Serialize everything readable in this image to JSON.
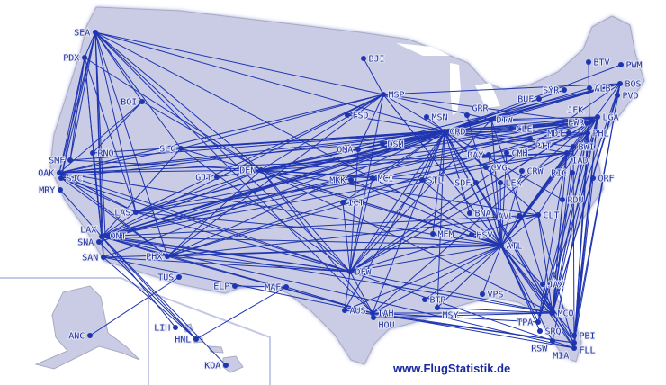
{
  "map": {
    "land_color": "#c9cce4",
    "border_color": "#a9acc0",
    "route_color": "#1f35b0",
    "airports": [
      "SEA",
      "PDX",
      "BOI",
      "RNO",
      "SMF",
      "OAK",
      "SJC",
      "MRY",
      "SLC",
      "GJT",
      "DEN",
      "LAS",
      "LAX",
      "ONT",
      "SNA",
      "SAN",
      "PHX",
      "TUS",
      "ELP",
      "MAF",
      "ANC",
      "LIH",
      "HNL",
      "KOA",
      "BJI",
      "MSP",
      "FSD",
      "MSN",
      "GRR",
      "DTW",
      "ORD",
      "CLE",
      "OMA",
      "DSM",
      "DAY",
      "CMH",
      "PIT",
      "CVG",
      "CRW",
      "MCI",
      "MKK",
      "STL",
      "SDF",
      "LEX",
      "ICT",
      "BNA",
      "MEM",
      "HSV",
      "ATL",
      "AVL",
      "CLT",
      "RDU",
      "DFW",
      "BTR",
      "MSY",
      "VPS",
      "AUS",
      "IAH",
      "HOU",
      "JAX",
      "MCO",
      "TPA",
      "SRQ",
      "RSW",
      "PBI",
      "FLL",
      "MIA",
      "BTV",
      "PWM",
      "BOS",
      "PVD",
      "SYR",
      "ALB",
      "BUF",
      "LGA",
      "EWR",
      "PHL",
      "MDT",
      "BWI",
      "IAD",
      "RIC",
      "ORF"
    ],
    "routes": [
      [
        "SEA",
        "PDX"
      ],
      [
        "SEA",
        "OAK"
      ],
      [
        "SEA",
        "SJC"
      ],
      [
        "SEA",
        "LAX"
      ],
      [
        "SEA",
        "SAN"
      ],
      [
        "SEA",
        "LAS"
      ],
      [
        "SEA",
        "PHX"
      ],
      [
        "SEA",
        "SLC"
      ],
      [
        "SEA",
        "DEN"
      ],
      [
        "SEA",
        "MSP"
      ],
      [
        "SEA",
        "ORD"
      ],
      [
        "SEA",
        "DFW"
      ],
      [
        "SEA",
        "ATL"
      ],
      [
        "SEA",
        "BOI"
      ],
      [
        "SEA",
        "SMF"
      ],
      [
        "SEA",
        "ONT"
      ],
      [
        "SEA",
        "IAH"
      ],
      [
        "PDX",
        "OAK"
      ],
      [
        "PDX",
        "LAX"
      ],
      [
        "PDX",
        "SJC"
      ],
      [
        "PDX",
        "LAS"
      ],
      [
        "PDX",
        "SAN"
      ],
      [
        "PDX",
        "DEN"
      ],
      [
        "PDX",
        "SMF"
      ],
      [
        "BOI",
        "RNO"
      ],
      [
        "BOI",
        "OAK"
      ],
      [
        "BOI",
        "DEN"
      ],
      [
        "RNO",
        "LAX"
      ],
      [
        "RNO",
        "ORD"
      ],
      [
        "OAK",
        "LAS"
      ],
      [
        "OAK",
        "DEN"
      ],
      [
        "OAK",
        "ORD"
      ],
      [
        "OAK",
        "DFW"
      ],
      [
        "OAK",
        "PHX"
      ],
      [
        "OAK",
        "SLC"
      ],
      [
        "OAK",
        "MSP"
      ],
      [
        "OAK",
        "ATL"
      ],
      [
        "OAK",
        "IAD"
      ],
      [
        "OAK",
        "EWR"
      ],
      [
        "SJC",
        "LAS"
      ],
      [
        "SJC",
        "DFW"
      ],
      [
        "SJC",
        "ORD"
      ],
      [
        "SJC",
        "PHX"
      ],
      [
        "MRY",
        "LAX"
      ],
      [
        "SMF",
        "DEN"
      ],
      [
        "SMF",
        "ORD"
      ],
      [
        "SLC",
        "ORD"
      ],
      [
        "SLC",
        "ATL"
      ],
      [
        "SLC",
        "DFW"
      ],
      [
        "SLC",
        "LAX"
      ],
      [
        "SLC",
        "JFK"
      ],
      [
        "SLC",
        "MSP"
      ],
      [
        "SLC",
        "EWR"
      ],
      [
        "GJT",
        "DEN"
      ],
      [
        "DEN",
        "ORD"
      ],
      [
        "DEN",
        "ATL"
      ],
      [
        "DEN",
        "DFW"
      ],
      [
        "DEN",
        "LAX"
      ],
      [
        "DEN",
        "LAS"
      ],
      [
        "DEN",
        "PHX"
      ],
      [
        "DEN",
        "IAD"
      ],
      [
        "DEN",
        "EWR"
      ],
      [
        "DEN",
        "LGA"
      ],
      [
        "DEN",
        "MSP"
      ],
      [
        "DEN",
        "STL"
      ],
      [
        "DEN",
        "MCI"
      ],
      [
        "DEN",
        "BOS"
      ],
      [
        "DEN",
        "CLT"
      ],
      [
        "DEN",
        "MCO"
      ],
      [
        "DEN",
        "IAH"
      ],
      [
        "DEN",
        "DTW"
      ],
      [
        "DEN",
        "PHL"
      ],
      [
        "LAS",
        "ORD"
      ],
      [
        "LAS",
        "ATL"
      ],
      [
        "LAS",
        "DFW"
      ],
      [
        "LAS",
        "EWR"
      ],
      [
        "LAS",
        "IAD"
      ],
      [
        "LAS",
        "MSP"
      ],
      [
        "LAS",
        "BOS"
      ],
      [
        "LAS",
        "DTW"
      ],
      [
        "LAS",
        "LAX"
      ],
      [
        "LAX",
        "ORD"
      ],
      [
        "LAX",
        "ATL"
      ],
      [
        "LAX",
        "DFW"
      ],
      [
        "LAX",
        "IAH"
      ],
      [
        "LAX",
        "EWR"
      ],
      [
        "LAX",
        "LGA"
      ],
      [
        "LAX",
        "IAD"
      ],
      [
        "LAX",
        "BOS"
      ],
      [
        "LAX",
        "MIA"
      ],
      [
        "LAX",
        "MCO"
      ],
      [
        "LAX",
        "HNL"
      ],
      [
        "LAX",
        "KOA"
      ],
      [
        "LAX",
        "LIH"
      ],
      [
        "LAX",
        "PHX"
      ],
      [
        "LAX",
        "MSP"
      ],
      [
        "LAX",
        "DTW"
      ],
      [
        "LAX",
        "PHL"
      ],
      [
        "LAX",
        "CLT"
      ],
      [
        "SAN",
        "HNL"
      ],
      [
        "SAN",
        "ORD"
      ],
      [
        "SAN",
        "ATL"
      ],
      [
        "SAN",
        "DFW"
      ],
      [
        "SAN",
        "IAH"
      ],
      [
        "ONT",
        "DFW"
      ],
      [
        "SNA",
        "HNL"
      ],
      [
        "SNA",
        "ORD"
      ],
      [
        "PHX",
        "ORD"
      ],
      [
        "PHX",
        "ATL"
      ],
      [
        "PHX",
        "DFW"
      ],
      [
        "PHX",
        "IAH"
      ],
      [
        "PHX",
        "EWR"
      ],
      [
        "PHX",
        "CLT"
      ],
      [
        "PHX",
        "MSP"
      ],
      [
        "PHX",
        "PHL"
      ],
      [
        "TUS",
        "ANC"
      ],
      [
        "ELP",
        "MAF"
      ],
      [
        "MAF",
        "HNL"
      ],
      [
        "MAF",
        "IAH"
      ],
      [
        "BJI",
        "MSP"
      ],
      [
        "MSP",
        "ORD"
      ],
      [
        "MSP",
        "DTW"
      ],
      [
        "MSP",
        "ATL"
      ],
      [
        "MSP",
        "EWR"
      ],
      [
        "MSP",
        "OMA"
      ],
      [
        "MSP",
        "FSD"
      ],
      [
        "MSP",
        "DFW"
      ],
      [
        "MSP",
        "BOS"
      ],
      [
        "ORD",
        "DTW"
      ],
      [
        "ORD",
        "CLE"
      ],
      [
        "ORD",
        "LGA"
      ],
      [
        "ORD",
        "EWR"
      ],
      [
        "ORD",
        "BOS"
      ],
      [
        "ORD",
        "PHL"
      ],
      [
        "ORD",
        "IAD"
      ],
      [
        "ORD",
        "ATL"
      ],
      [
        "ORD",
        "DFW"
      ],
      [
        "ORD",
        "MCO"
      ],
      [
        "ORD",
        "MIA"
      ],
      [
        "ORD",
        "TPA"
      ],
      [
        "ORD",
        "FLL"
      ],
      [
        "ORD",
        "IAH"
      ],
      [
        "ORD",
        "AUS"
      ],
      [
        "ORD",
        "MSY"
      ],
      [
        "ORD",
        "BNA"
      ],
      [
        "ORD",
        "MEM"
      ],
      [
        "ORD",
        "STL"
      ],
      [
        "ORD",
        "OMA"
      ],
      [
        "ORD",
        "MCI"
      ],
      [
        "ORD",
        "DSM"
      ],
      [
        "ORD",
        "CLT"
      ],
      [
        "ORD",
        "RDU"
      ],
      [
        "ORD",
        "PWM"
      ],
      [
        "ORD",
        "ALB"
      ],
      [
        "ORD",
        "SYR"
      ],
      [
        "ORD",
        "PIT"
      ],
      [
        "ORD",
        "CVG"
      ],
      [
        "ORD",
        "BWI"
      ],
      [
        "ORD",
        "MSN"
      ],
      [
        "ORD",
        "ICT"
      ],
      [
        "ORD",
        "FSD"
      ],
      [
        "ORD",
        "SDF"
      ],
      [
        "DTW",
        "LGA"
      ],
      [
        "DTW",
        "BOS"
      ],
      [
        "DTW",
        "EWR"
      ],
      [
        "DTW",
        "ATL"
      ],
      [
        "DTW",
        "MCO"
      ],
      [
        "DTW",
        "DFW"
      ],
      [
        "GRR",
        "ATL"
      ],
      [
        "CLE",
        "EWR"
      ],
      [
        "CLE",
        "LGA"
      ],
      [
        "BUF",
        "ORD"
      ],
      [
        "ATL",
        "LGA"
      ],
      [
        "ATL",
        "EWR"
      ],
      [
        "ATL",
        "BOS"
      ],
      [
        "ATL",
        "PHL"
      ],
      [
        "ATL",
        "IAD"
      ],
      [
        "ATL",
        "BWI"
      ],
      [
        "ATL",
        "MCO"
      ],
      [
        "ATL",
        "MIA"
      ],
      [
        "ATL",
        "TPA"
      ],
      [
        "ATL",
        "FLL"
      ],
      [
        "ATL",
        "JAX"
      ],
      [
        "ATL",
        "RSW"
      ],
      [
        "ATL",
        "PBI"
      ],
      [
        "ATL",
        "DFW"
      ],
      [
        "ATL",
        "IAH"
      ],
      [
        "ATL",
        "MSY"
      ],
      [
        "ATL",
        "STL"
      ],
      [
        "ATL",
        "MCI"
      ],
      [
        "ATL",
        "CLT"
      ],
      [
        "ATL",
        "DAY"
      ],
      [
        "ATL",
        "CMH"
      ],
      [
        "ATL",
        "VPS"
      ],
      [
        "ATL",
        "SRQ"
      ],
      [
        "ATL",
        "DEN"
      ],
      [
        "ATL",
        "MSP"
      ],
      [
        "DFW",
        "LGA"
      ],
      [
        "DFW",
        "IAD"
      ],
      [
        "DFW",
        "MIA"
      ],
      [
        "DFW",
        "MCO"
      ],
      [
        "DFW",
        "IAH"
      ],
      [
        "DFW",
        "AUS"
      ],
      [
        "DFW",
        "STL"
      ],
      [
        "DFW",
        "MCI"
      ],
      [
        "DFW",
        "OMA"
      ],
      [
        "DFW",
        "ICT"
      ],
      [
        "DFW",
        "CLT"
      ],
      [
        "DFW",
        "EWR"
      ],
      [
        "DFW",
        "BOS"
      ],
      [
        "IAH",
        "EWR"
      ],
      [
        "IAH",
        "MCO"
      ],
      [
        "IAH",
        "MIA"
      ],
      [
        "IAH",
        "TPA"
      ],
      [
        "IAH",
        "FLL"
      ],
      [
        "HOU",
        "MCO"
      ],
      [
        "AUS",
        "FLL"
      ],
      [
        "AUS",
        "ATL"
      ],
      [
        "MSY",
        "MCO"
      ],
      [
        "BTR",
        "ATL"
      ],
      [
        "LGA",
        "MCO"
      ],
      [
        "LGA",
        "MIA"
      ],
      [
        "LGA",
        "FLL"
      ],
      [
        "LGA",
        "PBI"
      ],
      [
        "LGA",
        "TPA"
      ],
      [
        "LGA",
        "RSW"
      ],
      [
        "EWR",
        "MCO"
      ],
      [
        "EWR",
        "FLL"
      ],
      [
        "EWR",
        "MIA"
      ],
      [
        "EWR",
        "TPA"
      ],
      [
        "BOS",
        "MCO"
      ],
      [
        "BOS",
        "FLL"
      ],
      [
        "BOS",
        "TPA"
      ],
      [
        "BOS",
        "PBI"
      ],
      [
        "PHL",
        "MCO"
      ],
      [
        "PHL",
        "MIA"
      ],
      [
        "IAD",
        "MCO"
      ],
      [
        "IAD",
        "TPA"
      ],
      [
        "BWI",
        "MCO"
      ],
      [
        "BWI",
        "FLL"
      ],
      [
        "CLT",
        "MCO"
      ],
      [
        "CLT",
        "LGA"
      ],
      [
        "CLT",
        "MIA"
      ],
      [
        "RDU",
        "MCO"
      ],
      [
        "PVD",
        "MCO"
      ],
      [
        "RIC",
        "MCO"
      ],
      [
        "ORF",
        "MIA"
      ],
      [
        "BTV",
        "EWR"
      ],
      [
        "AVL",
        "ATL"
      ],
      [
        "CRW",
        "ATL"
      ],
      [
        "LEX",
        "ATL"
      ],
      [
        "HSV",
        "ATL"
      ],
      [
        "MKK",
        "ATL"
      ]
    ]
  },
  "credit": "www.FlugStatistik.de"
}
